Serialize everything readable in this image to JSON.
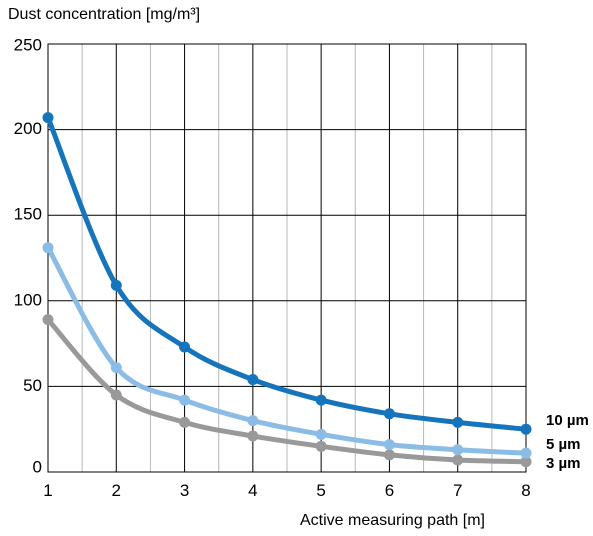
{
  "chart_data": {
    "type": "line",
    "ylabel": "Dust concentration [mg/m³]",
    "xlabel": "Active measuring path [m]",
    "xlim": [
      1,
      8
    ],
    "ylim": [
      0,
      250
    ],
    "x_ticks": [
      1,
      2,
      3,
      4,
      5,
      6,
      7,
      8
    ],
    "y_ticks": [
      0,
      50,
      100,
      150,
      200,
      250
    ],
    "grid": true,
    "series": [
      {
        "name": "10 µm",
        "color": "#1574bb",
        "x": [
          1,
          2,
          3,
          4,
          5,
          6,
          7,
          8
        ],
        "y": [
          207,
          109,
          73,
          54,
          42,
          34,
          29,
          25
        ]
      },
      {
        "name": "5 µm",
        "color": "#8bbce6",
        "x": [
          1,
          2,
          3,
          4,
          5,
          6,
          7,
          8
        ],
        "y": [
          131,
          61,
          42,
          30,
          22,
          16,
          13,
          11
        ]
      },
      {
        "name": "3 µm",
        "color": "#999999",
        "x": [
          1,
          2,
          3,
          4,
          5,
          6,
          7,
          8
        ],
        "y": [
          89,
          45,
          29,
          21,
          15,
          10,
          7,
          6
        ]
      }
    ]
  }
}
